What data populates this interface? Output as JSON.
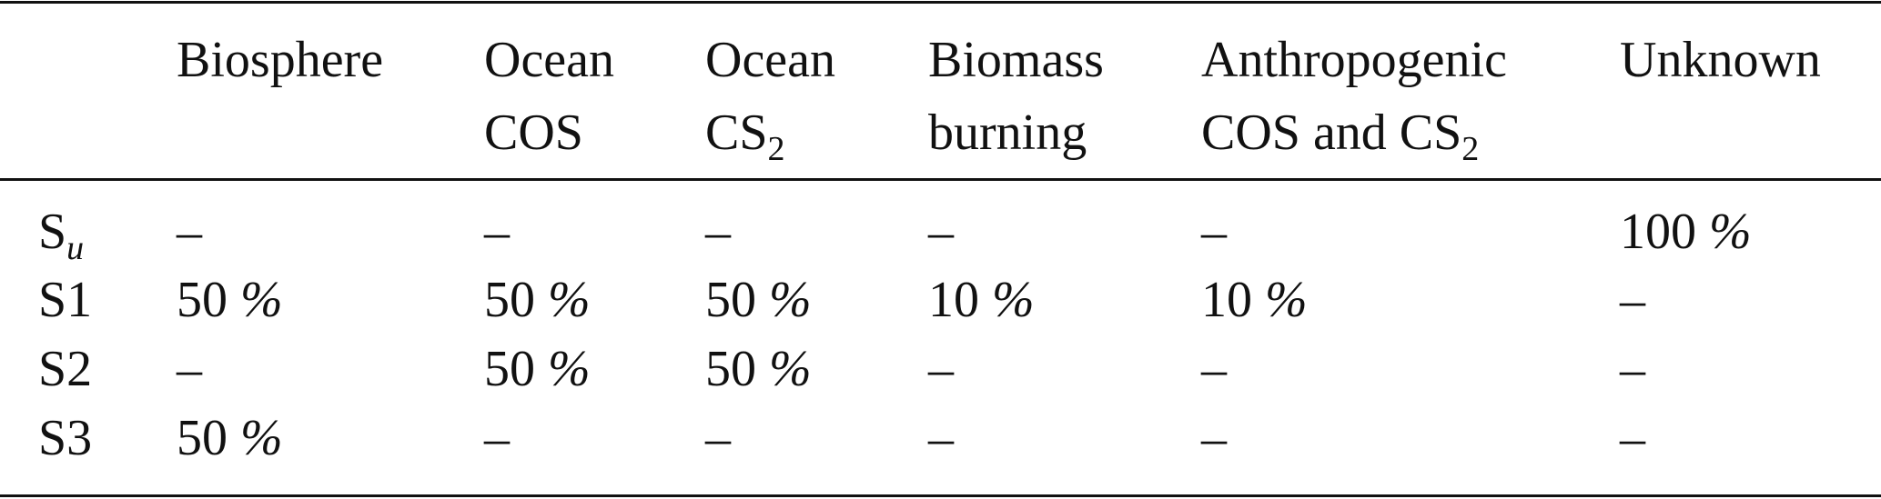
{
  "table": {
    "columns": [
      {
        "key": "row_label",
        "lines": [
          ""
        ]
      },
      {
        "key": "biosphere",
        "lines": [
          "Biosphere"
        ]
      },
      {
        "key": "ocean_cos",
        "lines": [
          "Ocean",
          "COS"
        ]
      },
      {
        "key": "ocean_cs2",
        "lines": [
          "Ocean",
          "CS"
        ],
        "sub": "2"
      },
      {
        "key": "biomass_burning",
        "lines": [
          "Biomass",
          "burning"
        ]
      },
      {
        "key": "anthropogenic",
        "lines": [
          "Anthropogenic",
          "COS and CS"
        ],
        "sub": "2"
      },
      {
        "key": "unknown",
        "lines": [
          "Unknown"
        ]
      }
    ],
    "rows": [
      {
        "label": "S",
        "label_sub": "u",
        "cells": [
          "–",
          "–",
          "–",
          "–",
          "–",
          "100 %"
        ]
      },
      {
        "label": "S1",
        "cells": [
          "50 %",
          "50 %",
          "50 %",
          "10 %",
          "10 %",
          "–"
        ]
      },
      {
        "label": "S2",
        "cells": [
          "–",
          "50 %",
          "50 %",
          "–",
          "–",
          "–"
        ]
      },
      {
        "label": "S3",
        "cells": [
          "50 %",
          "–",
          "–",
          "–",
          "–",
          "–"
        ]
      }
    ]
  }
}
